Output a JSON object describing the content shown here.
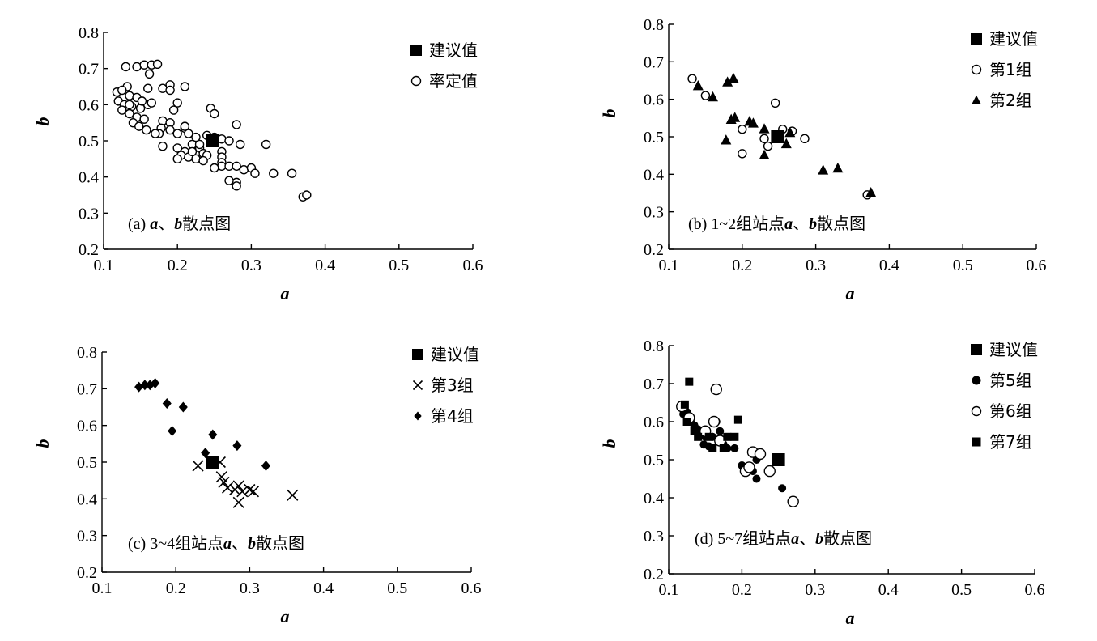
{
  "chart_data": [
    {
      "type": "scatter",
      "caption": {
        "label": "(a) ",
        "var_a": "a",
        "sep": "、",
        "var_b": "b",
        "suffix": "散点图"
      },
      "xlabel": "a",
      "ylabel": "b",
      "xlim": [
        0.1,
        0.6
      ],
      "ylim": [
        0.2,
        0.8
      ],
      "xticks": [
        "0.1",
        "0.2",
        "0.3",
        "0.4",
        "0.5",
        "0.6"
      ],
      "yticks": [
        "0.2",
        "0.3",
        "0.4",
        "0.5",
        "0.6",
        "0.7",
        "0.8"
      ],
      "legend_position": "top-right",
      "series": [
        {
          "name": "建议值",
          "marker": "square-filled",
          "size": "large",
          "points": [
            [
              0.248,
              0.5
            ]
          ]
        },
        {
          "name": "率定值",
          "marker": "circle-open",
          "size": "small",
          "points": [
            [
              0.13,
              0.705
            ],
            [
              0.145,
              0.705
            ],
            [
              0.155,
              0.71
            ],
            [
              0.165,
              0.71
            ],
            [
              0.173,
              0.712
            ],
            [
              0.162,
              0.685
            ],
            [
              0.132,
              0.65
            ],
            [
              0.16,
              0.645
            ],
            [
              0.18,
              0.645
            ],
            [
              0.19,
              0.655
            ],
            [
              0.21,
              0.65
            ],
            [
              0.118,
              0.635
            ],
            [
              0.125,
              0.64
            ],
            [
              0.135,
              0.625
            ],
            [
              0.145,
              0.62
            ],
            [
              0.12,
              0.61
            ],
            [
              0.128,
              0.6
            ],
            [
              0.138,
              0.595
            ],
            [
              0.15,
              0.59
            ],
            [
              0.16,
              0.6
            ],
            [
              0.165,
              0.605
            ],
            [
              0.125,
              0.585
            ],
            [
              0.135,
              0.575
            ],
            [
              0.145,
              0.565
            ],
            [
              0.155,
              0.56
            ],
            [
              0.14,
              0.55
            ],
            [
              0.148,
              0.54
            ],
            [
              0.158,
              0.53
            ],
            [
              0.2,
              0.605
            ],
            [
              0.195,
              0.585
            ],
            [
              0.18,
              0.555
            ],
            [
              0.19,
              0.55
            ],
            [
              0.178,
              0.535
            ],
            [
              0.19,
              0.53
            ],
            [
              0.175,
              0.52
            ],
            [
              0.21,
              0.535
            ],
            [
              0.215,
              0.52
            ],
            [
              0.225,
              0.51
            ],
            [
              0.24,
              0.515
            ],
            [
              0.25,
              0.51
            ],
            [
              0.26,
              0.505
            ],
            [
              0.27,
              0.5
            ],
            [
              0.28,
              0.545
            ],
            [
              0.245,
              0.59
            ],
            [
              0.25,
              0.575
            ],
            [
              0.2,
              0.48
            ],
            [
              0.21,
              0.47
            ],
            [
              0.205,
              0.46
            ],
            [
              0.215,
              0.455
            ],
            [
              0.2,
              0.45
            ],
            [
              0.22,
              0.49
            ],
            [
              0.23,
              0.48
            ],
            [
              0.235,
              0.465
            ],
            [
              0.24,
              0.46
            ],
            [
              0.225,
              0.45
            ],
            [
              0.235,
              0.445
            ],
            [
              0.26,
              0.47
            ],
            [
              0.26,
              0.455
            ],
            [
              0.26,
              0.44
            ],
            [
              0.26,
              0.43
            ],
            [
              0.25,
              0.425
            ],
            [
              0.27,
              0.43
            ],
            [
              0.28,
              0.43
            ],
            [
              0.285,
              0.49
            ],
            [
              0.29,
              0.42
            ],
            [
              0.28,
              0.385
            ],
            [
              0.28,
              0.375
            ],
            [
              0.27,
              0.39
            ],
            [
              0.3,
              0.425
            ],
            [
              0.305,
              0.41
            ],
            [
              0.32,
              0.49
            ],
            [
              0.33,
              0.41
            ],
            [
              0.355,
              0.41
            ],
            [
              0.37,
              0.345
            ],
            [
              0.375,
              0.35
            ],
            [
              0.18,
              0.485
            ],
            [
              0.2,
              0.52
            ],
            [
              0.21,
              0.54
            ],
            [
              0.23,
              0.49
            ],
            [
              0.245,
              0.5
            ],
            [
              0.19,
              0.64
            ],
            [
              0.135,
              0.6
            ],
            [
              0.152,
              0.61
            ],
            [
              0.17,
              0.52
            ],
            [
              0.22,
              0.47
            ]
          ]
        }
      ]
    },
    {
      "type": "scatter",
      "caption": {
        "label": "(b) 1~2组站点",
        "var_a": "a",
        "sep": "、",
        "var_b": "b",
        "suffix": "散点图"
      },
      "xlabel": "a",
      "ylabel": "b",
      "xlim": [
        0.1,
        0.6
      ],
      "ylim": [
        0.2,
        0.8
      ],
      "xticks": [
        "0.1",
        "0.2",
        "0.3",
        "0.4",
        "0.5",
        "0.6"
      ],
      "yticks": [
        "0.2",
        "0.3",
        "0.4",
        "0.5",
        "0.6",
        "0.7",
        "0.8"
      ],
      "legend_position": "top-right",
      "series": [
        {
          "name": "建议值",
          "marker": "square-filled",
          "size": "large",
          "points": [
            [
              0.248,
              0.5
            ]
          ]
        },
        {
          "name": "第1组",
          "marker": "circle-open",
          "size": "small",
          "points": [
            [
              0.132,
              0.655
            ],
            [
              0.15,
              0.61
            ],
            [
              0.245,
              0.59
            ],
            [
              0.2,
              0.52
            ],
            [
              0.255,
              0.52
            ],
            [
              0.268,
              0.515
            ],
            [
              0.285,
              0.495
            ],
            [
              0.23,
              0.495
            ],
            [
              0.235,
              0.475
            ],
            [
              0.2,
              0.455
            ],
            [
              0.37,
              0.345
            ]
          ]
        },
        {
          "name": "第2组",
          "marker": "triangle-filled",
          "size": "medium",
          "points": [
            [
              0.14,
              0.635
            ],
            [
              0.16,
              0.605
            ],
            [
              0.18,
              0.645
            ],
            [
              0.188,
              0.655
            ],
            [
              0.185,
              0.545
            ],
            [
              0.19,
              0.55
            ],
            [
              0.21,
              0.54
            ],
            [
              0.215,
              0.535
            ],
            [
              0.23,
              0.52
            ],
            [
              0.178,
              0.49
            ],
            [
              0.23,
              0.45
            ],
            [
              0.26,
              0.48
            ],
            [
              0.265,
              0.51
            ],
            [
              0.31,
              0.41
            ],
            [
              0.33,
              0.415
            ],
            [
              0.375,
              0.35
            ]
          ]
        }
      ]
    },
    {
      "type": "scatter",
      "caption": {
        "label": "(c) 3~4组站点",
        "var_a": "a",
        "sep": "、",
        "var_b": "b",
        "suffix": "散点图"
      },
      "xlabel": "a",
      "ylabel": "b",
      "xlim": [
        0.1,
        0.6
      ],
      "ylim": [
        0.2,
        0.8
      ],
      "xticks": [
        "0.1",
        "0.2",
        "0.3",
        "0.4",
        "0.5",
        "0.6"
      ],
      "yticks": [
        "0.2",
        "0.3",
        "0.4",
        "0.5",
        "0.6",
        "0.7",
        "0.8"
      ],
      "legend_position": "top-right",
      "series": [
        {
          "name": "建议值",
          "marker": "square-filled",
          "size": "large",
          "points": [
            [
              0.25,
              0.5
            ]
          ]
        },
        {
          "name": "第3组",
          "marker": "cross",
          "size": "medium",
          "points": [
            [
              0.23,
              0.49
            ],
            [
              0.26,
              0.5
            ],
            [
              0.262,
              0.46
            ],
            [
              0.265,
              0.445
            ],
            [
              0.27,
              0.43
            ],
            [
              0.28,
              0.425
            ],
            [
              0.285,
              0.435
            ],
            [
              0.29,
              0.42
            ],
            [
              0.3,
              0.425
            ],
            [
              0.305,
              0.42
            ],
            [
              0.285,
              0.39
            ],
            [
              0.358,
              0.41
            ]
          ]
        },
        {
          "name": "第4组",
          "marker": "diamond-filled",
          "size": "medium",
          "points": [
            [
              0.15,
              0.705
            ],
            [
              0.158,
              0.71
            ],
            [
              0.165,
              0.71
            ],
            [
              0.172,
              0.715
            ],
            [
              0.188,
              0.66
            ],
            [
              0.21,
              0.65
            ],
            [
              0.195,
              0.585
            ],
            [
              0.25,
              0.575
            ],
            [
              0.24,
              0.525
            ],
            [
              0.283,
              0.545
            ],
            [
              0.322,
              0.49
            ]
          ]
        }
      ]
    },
    {
      "type": "scatter",
      "caption": {
        "label": "(d) 5~7组站点",
        "var_a": "a",
        "sep": "、",
        "var_b": "b",
        "suffix": "散点图"
      },
      "xlabel": "a",
      "ylabel": "b",
      "xlim": [
        0.1,
        0.6
      ],
      "ylim": [
        0.2,
        0.8
      ],
      "xticks": [
        "0.1",
        "0.2",
        "0.3",
        "0.4",
        "0.5",
        "0.6"
      ],
      "yticks": [
        "0.2",
        "0.3",
        "0.4",
        "0.5",
        "0.6",
        "0.7",
        "0.8"
      ],
      "legend_position": "top-right",
      "series": [
        {
          "name": "建议值",
          "marker": "square-filled",
          "size": "large",
          "points": [
            [
              0.25,
              0.5
            ]
          ]
        },
        {
          "name": "第5组",
          "marker": "circle-filled",
          "size": "small",
          "points": [
            [
              0.12,
              0.62
            ],
            [
              0.125,
              0.625
            ],
            [
              0.13,
              0.6
            ],
            [
              0.135,
              0.59
            ],
            [
              0.14,
              0.58
            ],
            [
              0.145,
              0.575
            ],
            [
              0.15,
              0.56
            ],
            [
              0.148,
              0.54
            ],
            [
              0.155,
              0.535
            ],
            [
              0.16,
              0.56
            ],
            [
              0.165,
              0.6
            ],
            [
              0.17,
              0.575
            ],
            [
              0.175,
              0.54
            ],
            [
              0.18,
              0.53
            ],
            [
              0.19,
              0.53
            ],
            [
              0.2,
              0.485
            ],
            [
              0.205,
              0.48
            ],
            [
              0.21,
              0.475
            ],
            [
              0.215,
              0.47
            ],
            [
              0.22,
              0.45
            ],
            [
              0.22,
              0.5
            ],
            [
              0.255,
              0.425
            ]
          ]
        },
        {
          "name": "第6组",
          "marker": "circle-open",
          "size": "medium",
          "points": [
            [
              0.118,
              0.64
            ],
            [
              0.128,
              0.61
            ],
            [
              0.165,
              0.685
            ],
            [
              0.162,
              0.6
            ],
            [
              0.15,
              0.575
            ],
            [
              0.17,
              0.55
            ],
            [
              0.205,
              0.47
            ],
            [
              0.21,
              0.48
            ],
            [
              0.215,
              0.52
            ],
            [
              0.225,
              0.515
            ],
            [
              0.238,
              0.47
            ],
            [
              0.27,
              0.39
            ]
          ]
        },
        {
          "name": "第7组",
          "marker": "square-filled",
          "size": "small",
          "points": [
            [
              0.128,
              0.705
            ],
            [
              0.122,
              0.645
            ],
            [
              0.125,
              0.6
            ],
            [
              0.135,
              0.575
            ],
            [
              0.14,
              0.56
            ],
            [
              0.155,
              0.56
            ],
            [
              0.16,
              0.53
            ],
            [
              0.175,
              0.53
            ],
            [
              0.18,
              0.56
            ],
            [
              0.19,
              0.56
            ],
            [
              0.195,
              0.605
            ]
          ]
        }
      ]
    }
  ]
}
